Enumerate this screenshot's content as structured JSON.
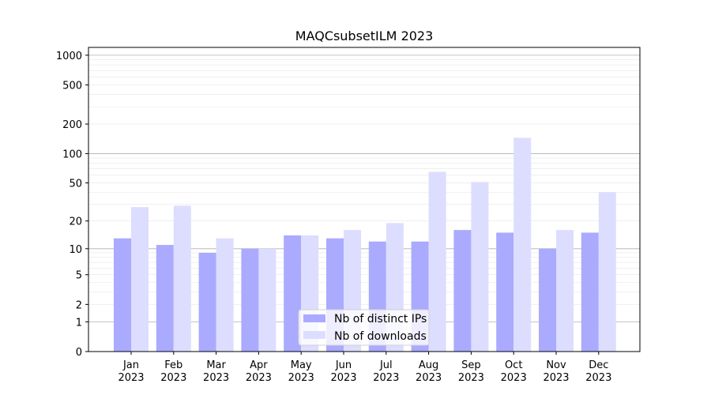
{
  "chart_data": {
    "type": "bar",
    "title": "MAQCsubsetILM 2023",
    "xlabel": "",
    "ylabel": "",
    "categories": [
      "Jan\n2023",
      "Feb\n2023",
      "Mar\n2023",
      "Apr\n2023",
      "May\n2023",
      "Jun\n2023",
      "Jul\n2023",
      "Aug\n2023",
      "Sep\n2023",
      "Oct\n2023",
      "Nov\n2023",
      "Dec\n2023"
    ],
    "series": [
      {
        "name": "Nb of distinct IPs",
        "color": "#aaaaff",
        "values": [
          13,
          11,
          9,
          10,
          14,
          13,
          12,
          12,
          16,
          15,
          10,
          15
        ]
      },
      {
        "name": "Nb of downloads",
        "color": "#ddddff",
        "values": [
          28,
          29,
          13,
          10,
          14,
          16,
          19,
          65,
          51,
          145,
          16,
          40
        ]
      }
    ],
    "y_scale": "symlog",
    "y_ticks": [
      0,
      1,
      2,
      5,
      10,
      20,
      50,
      100,
      200,
      500,
      1000
    ],
    "y_tick_labels": [
      "0",
      "1",
      "2",
      "5",
      "10",
      "20",
      "50",
      "100",
      "200",
      "500",
      "1000"
    ],
    "ylim": [
      0,
      1200
    ],
    "grid": true,
    "legend_position": "bottom-center"
  }
}
